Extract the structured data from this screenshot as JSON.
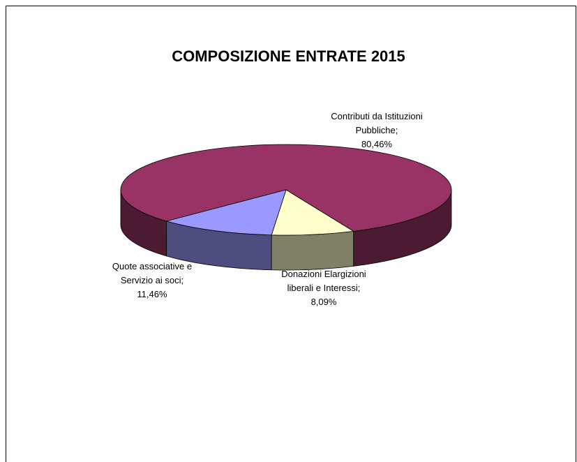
{
  "chart_data": {
    "type": "pie",
    "title": "COMPOSIZIONE ENTRATE 2015",
    "categories": [
      "Contributi da Istituzioni Pubbliche",
      "Donazioni  Elargizioni liberali e Interessi",
      "Quote associative e Servizio ai soci"
    ],
    "values": [
      80.46,
      8.09,
      11.46
    ],
    "value_labels": [
      "80,46%",
      "8,09%",
      "11,46%"
    ],
    "label_separator": ";",
    "colors": [
      "#993366",
      "#ffffcc",
      "#9999ff"
    ],
    "three_d": true
  }
}
